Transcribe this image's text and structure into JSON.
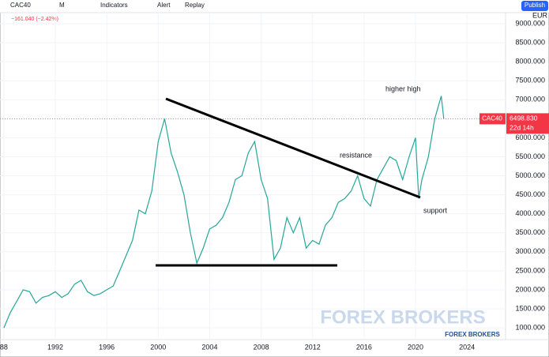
{
  "toolbar": {
    "symbol": "CAC40",
    "interval": "M",
    "indicators": "Indicators",
    "alert": "Alert",
    "replay": "Replay",
    "publish": "Publish"
  },
  "chart_data": {
    "type": "line",
    "subtitle": "−161.040 (−2.42%)",
    "y_axis_label": "EUR",
    "x": [
      1988,
      1988.5,
      1989,
      1989.5,
      1990,
      1990.5,
      1991,
      1991.5,
      1992,
      1992.5,
      1993,
      1993.5,
      1994,
      1994.5,
      1995,
      1995.5,
      1996,
      1996.5,
      1997,
      1997.5,
      1998,
      1998.5,
      1999,
      1999.5,
      2000,
      2000.5,
      2001,
      2001.5,
      2002,
      2002.5,
      2003,
      2003.5,
      2004,
      2004.5,
      2005,
      2005.5,
      2006,
      2006.5,
      2007,
      2007.5,
      2008,
      2008.5,
      2009,
      2009.5,
      2010,
      2010.5,
      2011,
      2011.5,
      2012,
      2012.5,
      2013,
      2013.5,
      2014,
      2014.5,
      2015,
      2015.5,
      2016,
      2016.5,
      2017,
      2017.5,
      2018,
      2018.5,
      2019,
      2019.5,
      2020,
      2020.25,
      2020.5,
      2021,
      2021.5,
      2022,
      2022.2
    ],
    "series": [
      {
        "name": "CAC40",
        "color": "#26a69a",
        "values": [
          1000,
          1400,
          1700,
          2000,
          1950,
          1650,
          1800,
          1850,
          1950,
          1800,
          1900,
          2150,
          2250,
          1950,
          1850,
          1900,
          2000,
          2100,
          2500,
          2900,
          3300,
          4100,
          4000,
          4600,
          5900,
          6500,
          5600,
          5100,
          4500,
          3500,
          2700,
          3100,
          3600,
          3700,
          3900,
          4300,
          4900,
          5000,
          5600,
          5900,
          4900,
          4400,
          2800,
          3100,
          3900,
          3500,
          3900,
          3100,
          3300,
          3200,
          3700,
          3900,
          4300,
          4400,
          4600,
          5000,
          4400,
          4200,
          4900,
          5200,
          5500,
          5400,
          4900,
          5500,
          6000,
          4400,
          4900,
          5500,
          6500,
          7100,
          6498.83
        ]
      }
    ],
    "xlim": [
      1987.7,
      2027
    ],
    "xticks": [
      {
        "value": 1988,
        "label": "88"
      },
      1992,
      1996,
      2000,
      2004,
      2008,
      2012,
      2016,
      2020,
      2024
    ],
    "ylim": [
      690,
      9270
    ],
    "yticks": [
      {
        "value": 9000,
        "label": "9000.000"
      },
      {
        "value": 8500,
        "label": "8500.000"
      },
      {
        "value": 8000,
        "label": "8000.000"
      },
      {
        "value": 7500,
        "label": "7500.000"
      },
      {
        "value": 7000,
        "label": "7000.000"
      },
      {
        "value": 6500,
        "label": "6500.000"
      },
      {
        "value": 6000,
        "label": "6000.000"
      },
      {
        "value": 5500,
        "label": "5500.000"
      },
      {
        "value": 5000,
        "label": "5000.000"
      },
      {
        "value": 4500,
        "label": "4500.000"
      },
      {
        "value": 4000,
        "label": "4000.000"
      },
      {
        "value": 3500,
        "label": "3500.000"
      },
      {
        "value": 3000,
        "label": "3000.000"
      },
      {
        "value": 2500,
        "label": "2500.000"
      },
      {
        "value": 2000,
        "label": "2000.000"
      },
      {
        "value": 1500,
        "label": "1500.000"
      },
      {
        "value": 1000,
        "label": "1000.000"
      }
    ],
    "last_value": {
      "value": 6498.83,
      "label": "6498.830"
    },
    "countdown": "22d 14h",
    "annotations": [
      "higher high",
      "resistance",
      "support"
    ]
  },
  "watermark": {
    "large": "FOREX BROKERS",
    "small": "FOREX BROKERS"
  }
}
